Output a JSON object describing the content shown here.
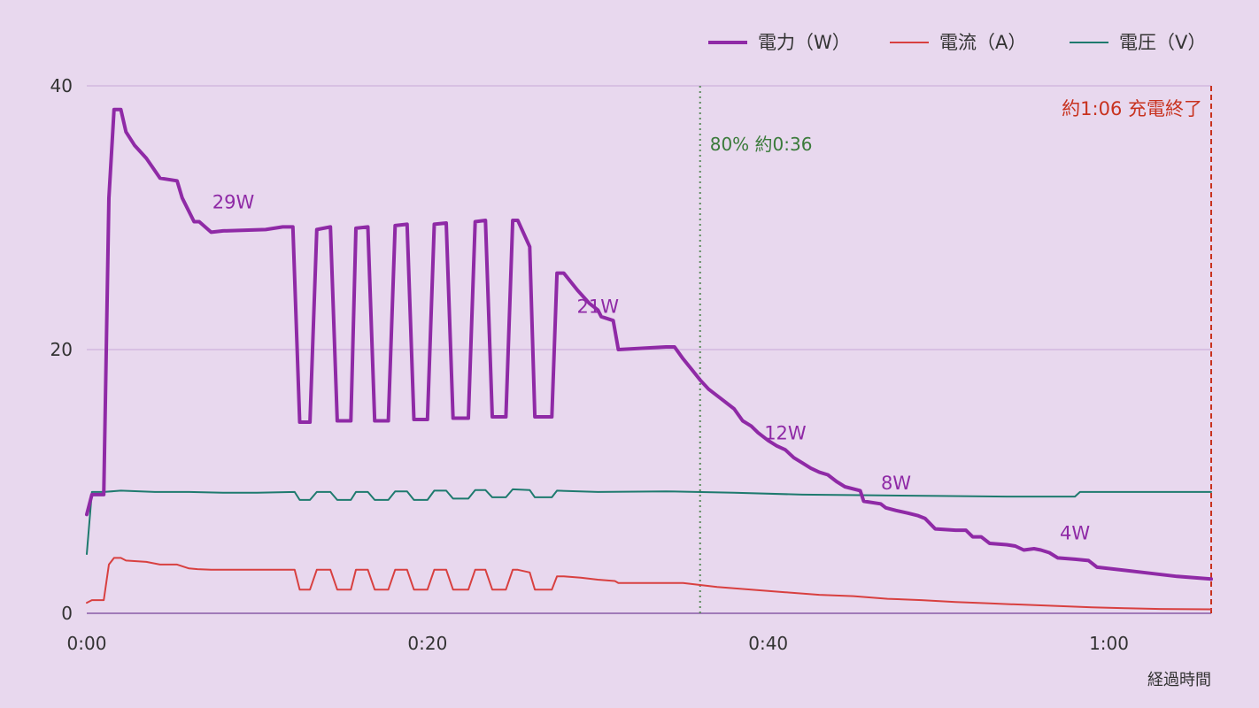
{
  "chart_data": {
    "type": "line",
    "xlabel": "経過時間",
    "ylabel": "",
    "xlim": [
      0,
      66
    ],
    "ylim": [
      0,
      40
    ],
    "x_ticks": [
      {
        "value": 0,
        "label": "0:00"
      },
      {
        "value": 20,
        "label": "0:20"
      },
      {
        "value": 40,
        "label": "0:40"
      },
      {
        "value": 60,
        "label": "1:00"
      }
    ],
    "y_ticks": [
      {
        "value": 0,
        "label": "0"
      },
      {
        "value": 20,
        "label": "20"
      },
      {
        "value": 40,
        "label": "40"
      }
    ],
    "grid": true,
    "legend_position": "top-right",
    "series": [
      {
        "name": "電力（W）",
        "color": "#8f2aa6",
        "points": [
          [
            0,
            7.5
          ],
          [
            0.3,
            9
          ],
          [
            1,
            9
          ],
          [
            1.3,
            31.5
          ],
          [
            1.6,
            38.2
          ],
          [
            2,
            38.2
          ],
          [
            2.3,
            36.5
          ],
          [
            2.8,
            35.5
          ],
          [
            3.5,
            34.5
          ],
          [
            4.3,
            33
          ],
          [
            5.3,
            32.8
          ],
          [
            5.6,
            31.5
          ],
          [
            6.3,
            29.7
          ],
          [
            6.6,
            29.7
          ],
          [
            7.3,
            28.9
          ],
          [
            8,
            29
          ],
          [
            10.5,
            29.1
          ],
          [
            11.5,
            29.3
          ],
          [
            12.1,
            29.3
          ],
          [
            12.5,
            14.5
          ],
          [
            13.1,
            14.5
          ],
          [
            13.5,
            29.1
          ],
          [
            14.3,
            29.3
          ],
          [
            14.7,
            14.6
          ],
          [
            15.5,
            14.6
          ],
          [
            15.8,
            29.2
          ],
          [
            16.5,
            29.3
          ],
          [
            16.9,
            14.6
          ],
          [
            17.7,
            14.6
          ],
          [
            18.1,
            29.4
          ],
          [
            18.8,
            29.5
          ],
          [
            19.2,
            14.7
          ],
          [
            20,
            14.7
          ],
          [
            20.4,
            29.5
          ],
          [
            21.1,
            29.6
          ],
          [
            21.5,
            14.8
          ],
          [
            22.4,
            14.8
          ],
          [
            22.8,
            29.7
          ],
          [
            23.4,
            29.8
          ],
          [
            23.8,
            14.9
          ],
          [
            24.6,
            14.9
          ],
          [
            25,
            29.8
          ],
          [
            25.3,
            29.8
          ],
          [
            26,
            27.8
          ],
          [
            26.3,
            14.9
          ],
          [
            27.3,
            14.9
          ],
          [
            27.6,
            25.8
          ],
          [
            28,
            25.8
          ],
          [
            28.8,
            24.5
          ],
          [
            29.5,
            23.5
          ],
          [
            30,
            23
          ],
          [
            30.2,
            22.5
          ],
          [
            30.9,
            22.2
          ],
          [
            31.2,
            20
          ],
          [
            34,
            20.2
          ],
          [
            34.5,
            20.2
          ],
          [
            35,
            19.3
          ],
          [
            35.5,
            18.5
          ],
          [
            36,
            17.7
          ],
          [
            36.5,
            17
          ],
          [
            37.2,
            16.3
          ],
          [
            38,
            15.5
          ],
          [
            38.5,
            14.6
          ],
          [
            39,
            14.2
          ],
          [
            39.4,
            13.7
          ],
          [
            40,
            13.1
          ],
          [
            40.5,
            12.7
          ],
          [
            41,
            12.4
          ],
          [
            41.5,
            11.8
          ],
          [
            42,
            11.4
          ],
          [
            42.5,
            11
          ],
          [
            43,
            10.7
          ],
          [
            43.5,
            10.5
          ],
          [
            44,
            10
          ],
          [
            44.5,
            9.6
          ],
          [
            45.4,
            9.3
          ],
          [
            45.6,
            8.5
          ],
          [
            46.6,
            8.3
          ],
          [
            46.9,
            8
          ],
          [
            47.5,
            7.8
          ],
          [
            48.2,
            7.6
          ],
          [
            48.8,
            7.4
          ],
          [
            49.2,
            7.2
          ],
          [
            49.8,
            6.4
          ],
          [
            51,
            6.3
          ],
          [
            51.6,
            6.3
          ],
          [
            52,
            5.8
          ],
          [
            52.5,
            5.8
          ],
          [
            53,
            5.3
          ],
          [
            54,
            5.2
          ],
          [
            54.5,
            5.1
          ],
          [
            55,
            4.8
          ],
          [
            55.6,
            4.9
          ],
          [
            56,
            4.8
          ],
          [
            56.5,
            4.6
          ],
          [
            57,
            4.2
          ],
          [
            58,
            4.1
          ],
          [
            58.8,
            4
          ],
          [
            59.3,
            3.5
          ],
          [
            62,
            3.1
          ],
          [
            64,
            2.8
          ],
          [
            65,
            2.7
          ],
          [
            66,
            2.6
          ]
        ]
      },
      {
        "name": "電流（A）",
        "color": "#d84040",
        "points": [
          [
            0,
            0.8
          ],
          [
            0.3,
            1.0
          ],
          [
            1,
            1.0
          ],
          [
            1.3,
            3.7
          ],
          [
            1.6,
            4.2
          ],
          [
            2,
            4.2
          ],
          [
            2.3,
            4.0
          ],
          [
            3.5,
            3.9
          ],
          [
            4.3,
            3.7
          ],
          [
            5.3,
            3.7
          ],
          [
            6,
            3.4
          ],
          [
            6.5,
            3.35
          ],
          [
            7.3,
            3.3
          ],
          [
            8,
            3.3
          ],
          [
            10.5,
            3.3
          ],
          [
            12,
            3.3
          ],
          [
            12.2,
            3.3
          ],
          [
            12.5,
            1.8
          ],
          [
            13.1,
            1.8
          ],
          [
            13.5,
            3.3
          ],
          [
            14.3,
            3.3
          ],
          [
            14.7,
            1.8
          ],
          [
            15.5,
            1.8
          ],
          [
            15.8,
            3.3
          ],
          [
            16.5,
            3.3
          ],
          [
            16.9,
            1.8
          ],
          [
            17.7,
            1.8
          ],
          [
            18.1,
            3.3
          ],
          [
            18.8,
            3.3
          ],
          [
            19.2,
            1.8
          ],
          [
            20,
            1.8
          ],
          [
            20.4,
            3.3
          ],
          [
            21.1,
            3.3
          ],
          [
            21.5,
            1.8
          ],
          [
            22.4,
            1.8
          ],
          [
            22.8,
            3.3
          ],
          [
            23.4,
            3.3
          ],
          [
            23.8,
            1.8
          ],
          [
            24.6,
            1.8
          ],
          [
            25,
            3.3
          ],
          [
            25.3,
            3.3
          ],
          [
            26,
            3.1
          ],
          [
            26.3,
            1.8
          ],
          [
            27.3,
            1.8
          ],
          [
            27.6,
            2.8
          ],
          [
            28,
            2.8
          ],
          [
            29,
            2.7
          ],
          [
            30,
            2.55
          ],
          [
            31,
            2.45
          ],
          [
            31.2,
            2.3
          ],
          [
            34,
            2.3
          ],
          [
            35,
            2.3
          ],
          [
            37,
            2.0
          ],
          [
            39,
            1.8
          ],
          [
            41,
            1.6
          ],
          [
            43,
            1.4
          ],
          [
            45,
            1.3
          ],
          [
            47,
            1.1
          ],
          [
            49,
            1.0
          ],
          [
            51,
            0.85
          ],
          [
            53,
            0.75
          ],
          [
            55,
            0.65
          ],
          [
            57,
            0.55
          ],
          [
            59,
            0.45
          ],
          [
            61,
            0.38
          ],
          [
            63,
            0.33
          ],
          [
            66,
            0.3
          ]
        ]
      },
      {
        "name": "電圧（V）",
        "color": "#1e7a6e",
        "points": [
          [
            0,
            4.5
          ],
          [
            0.3,
            9.2
          ],
          [
            1,
            9.2
          ],
          [
            2,
            9.3
          ],
          [
            4,
            9.2
          ],
          [
            6,
            9.2
          ],
          [
            8,
            9.15
          ],
          [
            10,
            9.15
          ],
          [
            12.2,
            9.2
          ],
          [
            12.5,
            8.6
          ],
          [
            13.1,
            8.6
          ],
          [
            13.5,
            9.2
          ],
          [
            14.3,
            9.2
          ],
          [
            14.7,
            8.6
          ],
          [
            15.5,
            8.6
          ],
          [
            15.8,
            9.2
          ],
          [
            16.5,
            9.2
          ],
          [
            16.9,
            8.6
          ],
          [
            17.7,
            8.6
          ],
          [
            18.1,
            9.25
          ],
          [
            18.8,
            9.25
          ],
          [
            19.2,
            8.6
          ],
          [
            20,
            8.6
          ],
          [
            20.4,
            9.3
          ],
          [
            21.1,
            9.3
          ],
          [
            21.5,
            8.7
          ],
          [
            22.4,
            8.7
          ],
          [
            22.8,
            9.35
          ],
          [
            23.4,
            9.35
          ],
          [
            23.8,
            8.8
          ],
          [
            24.6,
            8.8
          ],
          [
            25,
            9.4
          ],
          [
            26,
            9.35
          ],
          [
            26.3,
            8.8
          ],
          [
            27.3,
            8.8
          ],
          [
            27.6,
            9.3
          ],
          [
            30,
            9.2
          ],
          [
            34,
            9.25
          ],
          [
            38,
            9.15
          ],
          [
            42,
            9.0
          ],
          [
            46,
            8.95
          ],
          [
            50,
            8.9
          ],
          [
            54,
            8.85
          ],
          [
            58,
            8.85
          ],
          [
            58.3,
            9.2
          ],
          [
            62,
            9.2
          ],
          [
            66,
            9.2
          ]
        ]
      }
    ],
    "annotations": [
      {
        "text": "29W",
        "x": 8.6,
        "y": 30.7
      },
      {
        "text": "21W",
        "x": 30,
        "y": 22.8
      },
      {
        "text": "12W",
        "x": 41,
        "y": 13.2
      },
      {
        "text": "8W",
        "x": 47.5,
        "y": 9.4
      },
      {
        "text": "4W",
        "x": 58,
        "y": 5.6
      }
    ],
    "vertical_markers": [
      {
        "x": 36,
        "label": "80% 約0:36",
        "color": "#5a8a5a"
      },
      {
        "x": 66,
        "label": "約1:06 充電終了",
        "color": "#c8321e"
      }
    ]
  }
}
